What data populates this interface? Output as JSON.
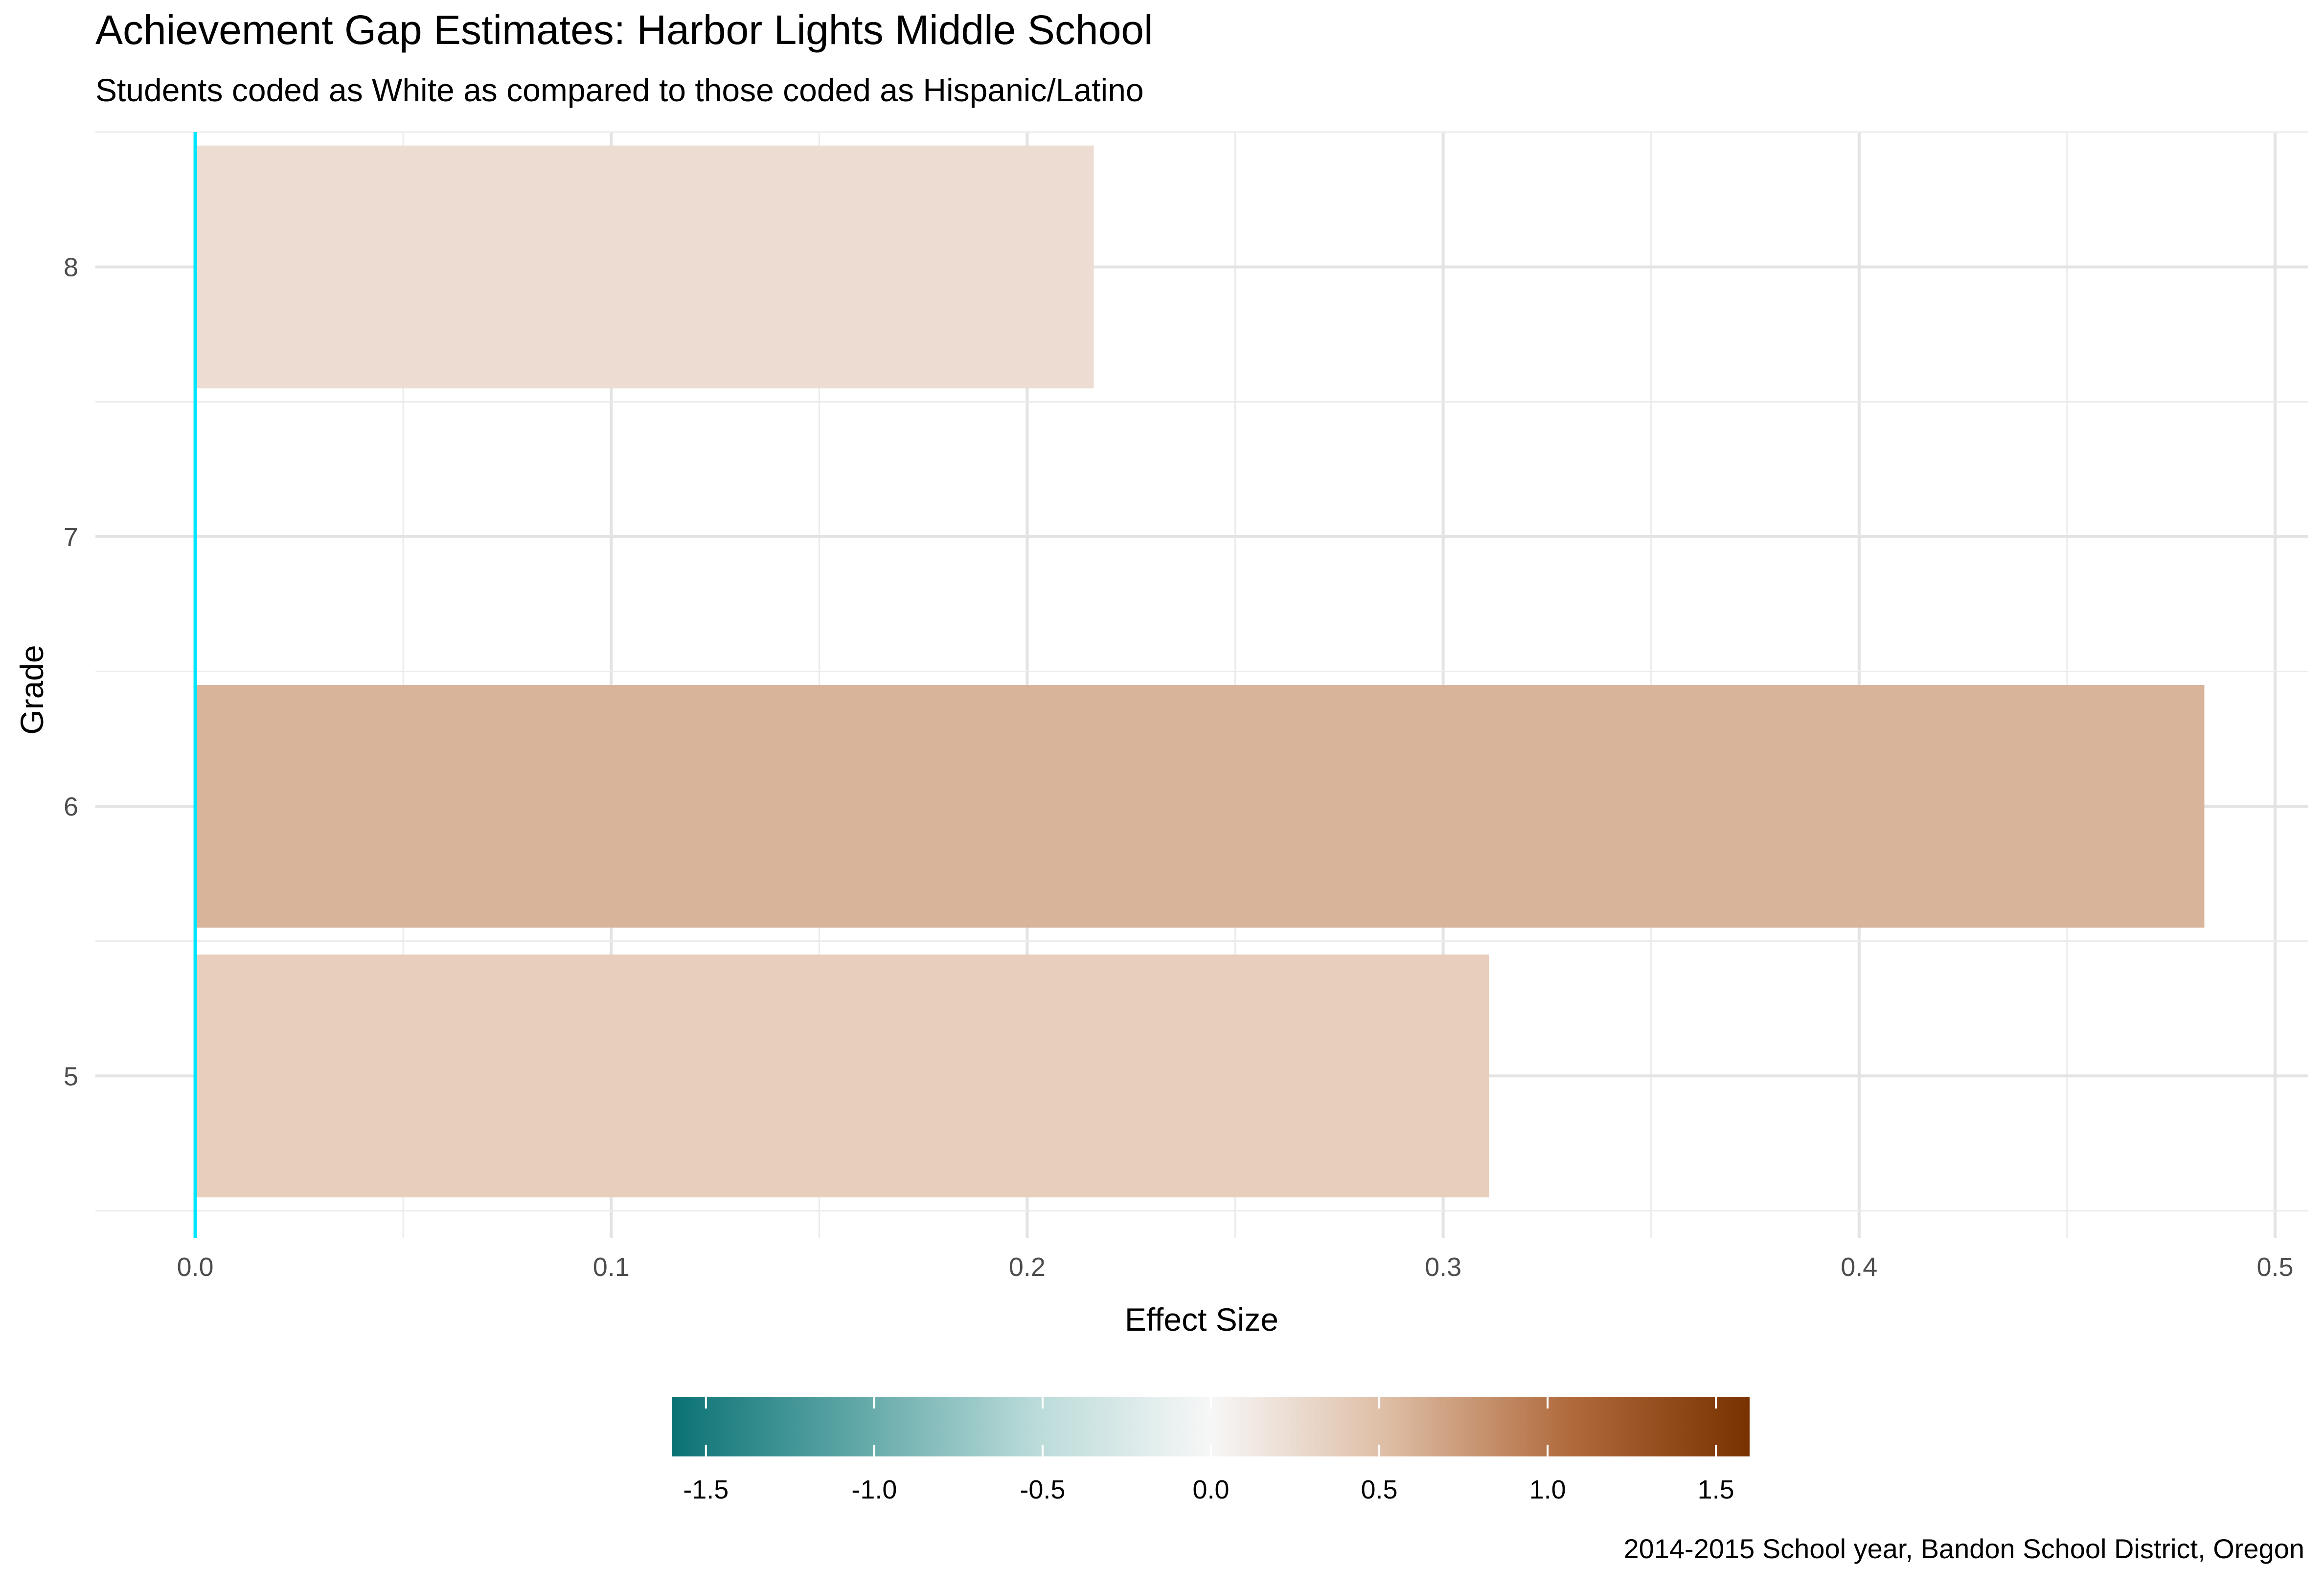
{
  "chart_data": {
    "type": "bar",
    "orientation": "horizontal",
    "title": "Achievement Gap Estimates: Harbor Lights Middle School",
    "subtitle": "Students coded as White as compared to those coded as Hispanic/Latino",
    "caption": "2014-2015 School year, Bandon School District, Oregon",
    "xlabel": "Effect Size",
    "ylabel": "Grade",
    "xlim": [
      -0.024,
      0.508
    ],
    "ylim": [
      4.4,
      8.5
    ],
    "x_ticks": [
      0.0,
      0.1,
      0.2,
      0.3,
      0.4,
      0.5
    ],
    "x_tick_labels": [
      "0.0",
      "0.1",
      "0.2",
      "0.3",
      "0.4",
      "0.5"
    ],
    "y_ticks": [
      5,
      6,
      7,
      8
    ],
    "y_tick_labels": [
      "5",
      "6",
      "7",
      "8"
    ],
    "categories": [
      "5",
      "6",
      "7",
      "8"
    ],
    "values": [
      0.311,
      0.483,
      null,
      0.216
    ],
    "bar_colors": [
      "#e8cebc",
      "#d8b49a",
      null,
      "#ecdcd1"
    ],
    "reference_line": {
      "x": 0.0,
      "color": "#00e5ff"
    },
    "grid": true,
    "legend": {
      "type": "colorbar",
      "position": "bottom",
      "range": [
        -1.6,
        1.6
      ],
      "ticks": [
        -1.5,
        -1.0,
        -0.5,
        0.0,
        0.5,
        1.0,
        1.5
      ],
      "tick_labels": [
        "-1.5",
        "-1.0",
        "-0.5",
        "0.0",
        "0.5",
        "1.0",
        "1.5"
      ],
      "colors": [
        "#0b7274",
        "#5ea6a6",
        "#b8dad8",
        "#f7f7f7",
        "#ddbca3",
        "#b06a3c",
        "#783100"
      ]
    }
  }
}
